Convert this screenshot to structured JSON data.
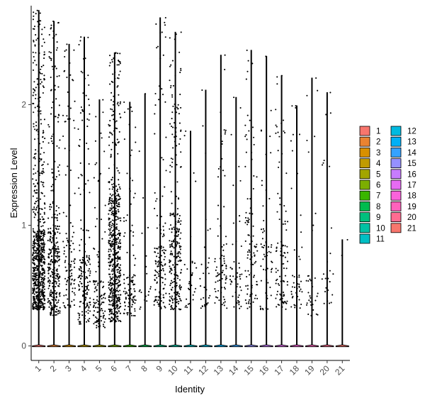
{
  "chart_data": {
    "type": "violin-jitter",
    "xlabel": "Identity",
    "ylabel": "Expression Level",
    "ylim": [
      -0.12,
      2.82
    ],
    "yticks": [
      0,
      1,
      2
    ],
    "categories": [
      "1",
      "2",
      "3",
      "4",
      "5",
      "6",
      "7",
      "8",
      "9",
      "10",
      "11",
      "12",
      "13",
      "14",
      "15",
      "16",
      "17",
      "18",
      "19",
      "20",
      "21"
    ],
    "legend_position": "right",
    "legend_columns": [
      [
        "1",
        "2",
        "3",
        "4",
        "5",
        "6",
        "7",
        "8",
        "9",
        "10",
        "11"
      ],
      [
        "12",
        "13",
        "14",
        "15",
        "16",
        "17",
        "18",
        "19",
        "20",
        "21"
      ]
    ],
    "colors": [
      "#F8766D",
      "#EA8331",
      "#D89000",
      "#C09B00",
      "#A3A500",
      "#7CAE00",
      "#39B600",
      "#00BB4E",
      "#00BF7D",
      "#00C1A3",
      "#00BFC4",
      "#00BAE0",
      "#00B0F6",
      "#35A2FF",
      "#9590FF",
      "#C77CFF",
      "#E76BF3",
      "#FA62DB",
      "#FF62BC",
      "#FF6C91",
      "#F8766D"
    ],
    "max_expression": [
      2.78,
      2.69,
      2.5,
      2.56,
      2.04,
      2.43,
      2.02,
      2.09,
      2.72,
      2.6,
      1.78,
      2.12,
      2.41,
      2.06,
      2.45,
      2.4,
      2.24,
      1.99,
      2.22,
      2.1,
      0.88
    ],
    "dense_expression_range": [
      [
        0.3,
        0.95
      ],
      [
        0.25,
        1.0
      ],
      [
        0.3,
        0.9
      ],
      [
        0.18,
        0.75
      ],
      [
        0.15,
        0.55
      ],
      [
        0.2,
        1.25
      ],
      [
        0.25,
        0.6
      ],
      [
        0.3,
        0.5
      ],
      [
        0.3,
        0.85
      ],
      [
        0.3,
        1.1
      ],
      [
        0.3,
        0.7
      ],
      [
        0.3,
        0.7
      ],
      [
        0.3,
        0.75
      ],
      [
        0.3,
        0.7
      ],
      [
        0.3,
        1.1
      ],
      [
        0.3,
        1.0
      ],
      [
        0.3,
        0.9
      ],
      [
        0.3,
        0.6
      ],
      [
        0.25,
        0.6
      ],
      [
        0.3,
        0.7
      ],
      [
        0.75,
        0.75
      ]
    ],
    "approx_points_shown": [
      750,
      350,
      110,
      180,
      120,
      600,
      110,
      20,
      140,
      270,
      30,
      30,
      80,
      50,
      100,
      60,
      100,
      45,
      35,
      25,
      2
    ]
  }
}
